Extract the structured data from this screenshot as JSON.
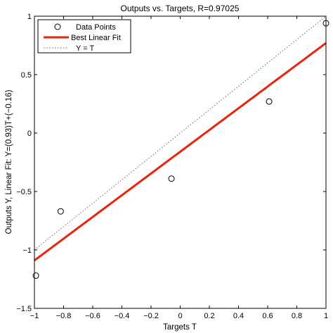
{
  "chart_data": {
    "type": "scatter",
    "title": "Outputs vs. Targets, R=0.97025",
    "xlabel": "Targets T",
    "ylabel": "Outputs Y,  Linear Fit: Y=(0.93)T+(−0.16)",
    "xlim": [
      -1,
      1
    ],
    "ylim": [
      -1.5,
      1
    ],
    "x_ticks": [
      -1,
      -0.8,
      -0.6,
      -0.4,
      -0.2,
      0,
      0.2,
      0.4,
      0.6,
      0.8,
      1
    ],
    "x_tick_labels": [
      "−1",
      "−0.8",
      "−0.6",
      "−0.4",
      "−0.2",
      "0",
      "0.2",
      "0.4",
      "0.6",
      "0.8",
      "1"
    ],
    "y_ticks": [
      -1.5,
      -1,
      -0.5,
      0,
      0.5,
      1
    ],
    "y_tick_labels": [
      "−1.5",
      "−1",
      "−0.5",
      "0",
      "0.5",
      "1"
    ],
    "grid": false,
    "legend_position": "top-left",
    "series": [
      {
        "name": "Data Points",
        "kind": "markers",
        "marker": "circle",
        "color": "#000000",
        "x": [
          -0.99,
          -0.82,
          -0.06,
          0.61,
          1.0
        ],
        "y": [
          -1.22,
          -0.67,
          -0.39,
          0.27,
          0.94
        ]
      },
      {
        "name": "Best Linear Fit",
        "kind": "line",
        "color": "#e8230e",
        "slope": 0.93,
        "intercept": -0.16,
        "x": [
          -1,
          1
        ],
        "y": [
          -1.09,
          0.77
        ]
      },
      {
        "name": "Y = T",
        "kind": "line",
        "style": "dotted",
        "color": "#666666",
        "x": [
          -1,
          1
        ],
        "y": [
          -1,
          1
        ]
      }
    ]
  }
}
